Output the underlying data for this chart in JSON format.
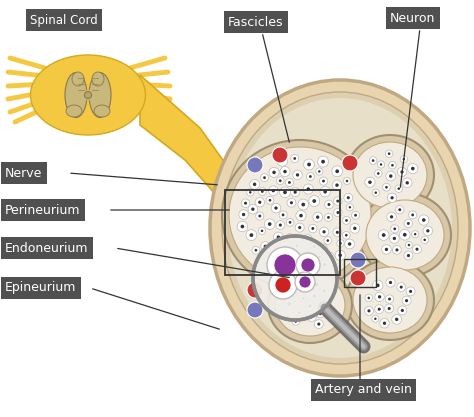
{
  "background_color": "#ffffff",
  "labels": {
    "spinal_cord": "Spinal Cord",
    "nerve": "Nerve",
    "fascicles": "Fascicles",
    "neuron": "Neuron",
    "perineurium": "Perineurium",
    "endoneurium": "Endoneurium",
    "epineurium": "Epineurium",
    "artery_vein": "Artery and vein"
  },
  "label_bg": "#505050",
  "label_fg": "#ffffff",
  "nerve_color": "#f5c842",
  "nerve_edge": "#d4a820",
  "epineurium_fill": "#e8d5b0",
  "epineurium_edge": "#c0a882",
  "perineurium_fill": "#d4bc96",
  "fascicle_outer_fill": "#d8c8a8",
  "fascicle_inner_fill": "#f2ece0",
  "neuron_fill": "#ffffff",
  "neuron_edge": "#cccccc",
  "axon_dot": "#444444",
  "blood_red": "#cc3333",
  "blood_blue": "#7777bb",
  "blood_purple": "#883399",
  "sc_yellow": "#f5c842",
  "sc_beige": "#c8b87a",
  "sc_dark": "#8a7850",
  "line_color": "#333333",
  "mag_fill": "#e0e0e0",
  "mag_edge": "#888888",
  "handle_color": "#888888"
}
